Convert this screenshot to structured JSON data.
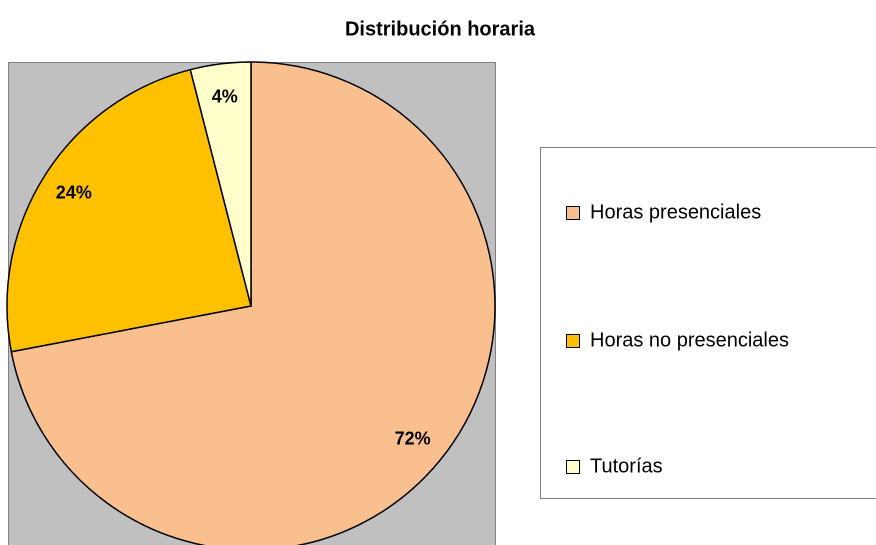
{
  "chart_data": {
    "type": "pie",
    "title": "Distribución horaria",
    "categories": [
      "Horas presenciales",
      "Horas no presenciales",
      "Tutorías"
    ],
    "values": [
      72,
      24,
      4
    ],
    "value_labels": [
      "72%",
      "24%",
      "4%"
    ],
    "colors": [
      "#F9BF8F",
      "#FFC000",
      "#FFFFCC"
    ],
    "legend": "right"
  }
}
